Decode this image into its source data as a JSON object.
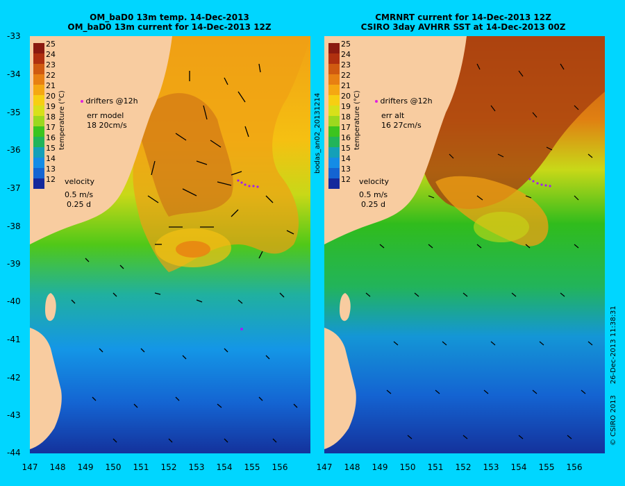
{
  "left_panel": {
    "title_line1": "OM_baD0 13m temp. 14-Dec-2013",
    "title_line2": "OM_baD0 13m current for 14-Dec-2013 12Z",
    "drifters_label": "drifters @12h",
    "err_label": "err model",
    "err_values": "18 20cm/s",
    "velocity_label": "velocity",
    "velocity_scale": "0.5 m/s",
    "velocity_time": "0.25 d"
  },
  "right_panel": {
    "title_line1": "CMRNRT current for 14-Dec-2013 12Z",
    "title_line2": "CSIRO 3day AVHRR SST at 14-Dec-2013 00Z",
    "drifters_label": "drifters @12h",
    "err_label": "err alt",
    "err_values": "16 27cm/s",
    "velocity_label": "velocity",
    "velocity_scale": "0.5 m/s",
    "velocity_time": "0.25 d",
    "side_label": "bodas_an02_20131214"
  },
  "colorbar": {
    "label": "temperature (°C)",
    "ticks": [
      "25",
      "24",
      "23",
      "22",
      "21",
      "20",
      "19",
      "18",
      "17",
      "16",
      "15",
      "14",
      "13",
      "12"
    ],
    "colors": [
      "#8b1a10",
      "#b0300f",
      "#d05a10",
      "#e88012",
      "#f5a812",
      "#f7cf12",
      "#d8e01a",
      "#9cd81e",
      "#3cc41e",
      "#22b45a",
      "#14a0b8",
      "#148ce6",
      "#1464d2",
      "#14289c"
    ]
  },
  "axes": {
    "lat_ticks": [
      "-33",
      "-34",
      "-35",
      "-36",
      "-37",
      "-38",
      "-39",
      "-40",
      "-41",
      "-42",
      "-43",
      "-44"
    ],
    "lon_ticks": [
      "147",
      "148",
      "149",
      "150",
      "151",
      "152",
      "153",
      "154",
      "155",
      "156"
    ]
  },
  "footer": {
    "credit": "© CSIRO 2013",
    "timestamp": "26-Dec-2013 11:38:31"
  }
}
